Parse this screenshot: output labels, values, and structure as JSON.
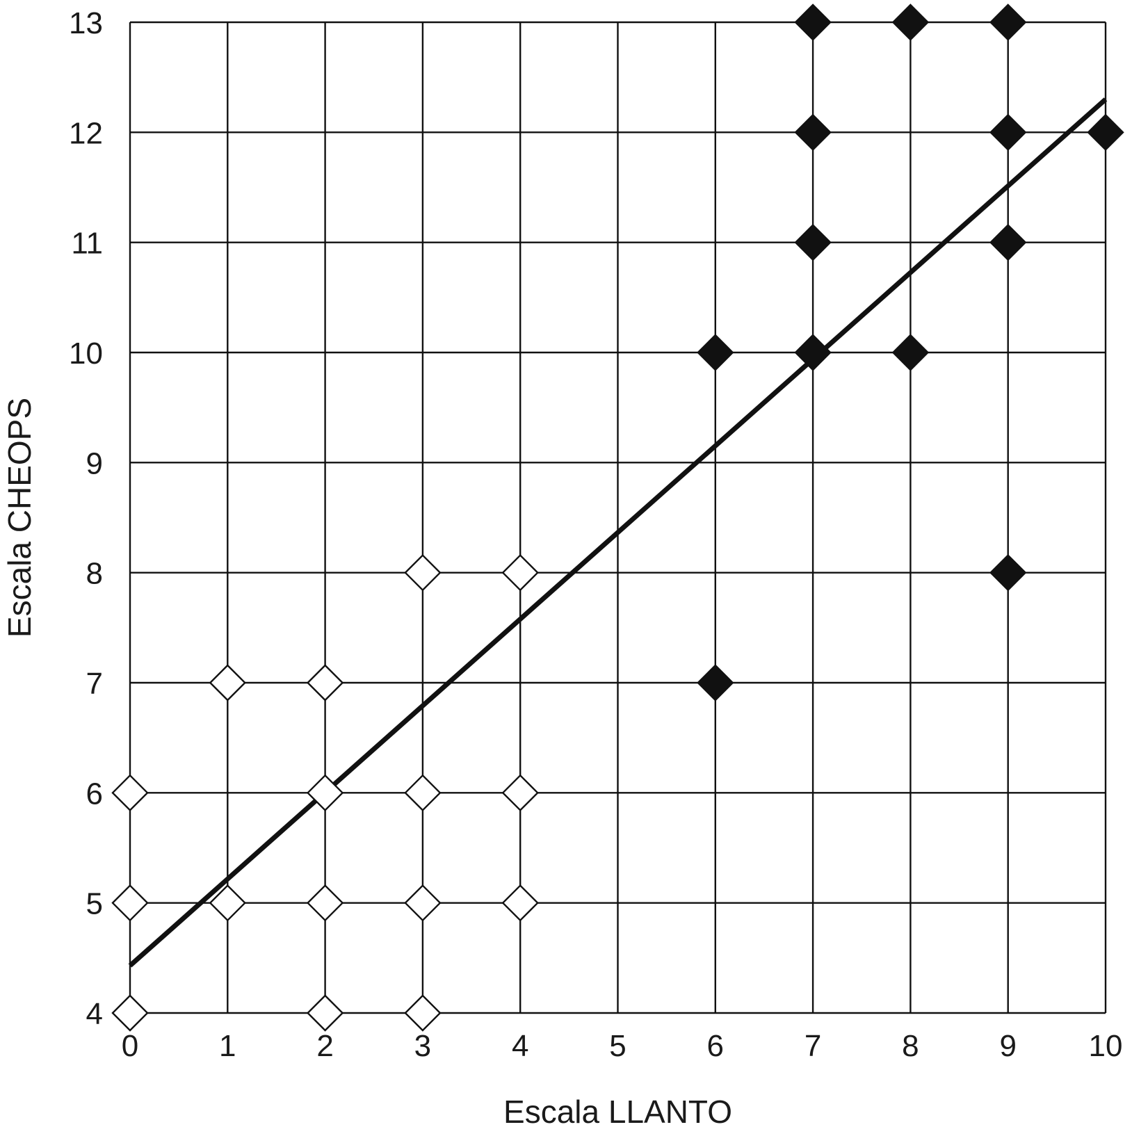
{
  "chart_data": {
    "type": "scatter",
    "title": "",
    "xlabel": "Escala LLANTO",
    "ylabel": "Escala CHEOPS",
    "xlim": [
      0,
      10
    ],
    "ylim": [
      4,
      13
    ],
    "x_ticks": [
      "0",
      "1",
      "2",
      "3",
      "4",
      "5",
      "6",
      "7",
      "8",
      "9",
      "10"
    ],
    "y_ticks": [
      "4",
      "5",
      "6",
      "7",
      "8",
      "9",
      "10",
      "11",
      "12",
      "13"
    ],
    "grid": true,
    "legend": "none",
    "series": [
      {
        "marker": "diamond-open",
        "color": "#ffffff",
        "points": [
          [
            0,
            4
          ],
          [
            0,
            5
          ],
          [
            0,
            6
          ],
          [
            1,
            5
          ],
          [
            1,
            7
          ],
          [
            2,
            4
          ],
          [
            2,
            5
          ],
          [
            2,
            6
          ],
          [
            2,
            7
          ],
          [
            3,
            4
          ],
          [
            3,
            5
          ],
          [
            3,
            6
          ],
          [
            3,
            8
          ],
          [
            4,
            5
          ],
          [
            4,
            6
          ],
          [
            4,
            8
          ]
        ]
      },
      {
        "marker": "diamond-filled",
        "color": "#111111",
        "points": [
          [
            6,
            7
          ],
          [
            6,
            10
          ],
          [
            7,
            10
          ],
          [
            7,
            11
          ],
          [
            7,
            12
          ],
          [
            7,
            13
          ],
          [
            8,
            10
          ],
          [
            8,
            13
          ],
          [
            9,
            8
          ],
          [
            9,
            11
          ],
          [
            9,
            12
          ],
          [
            9,
            13
          ],
          [
            10,
            12
          ]
        ]
      }
    ],
    "trend_line": {
      "x": [
        0,
        10
      ],
      "y": [
        4.43,
        12.3
      ],
      "color": "#111111"
    }
  }
}
